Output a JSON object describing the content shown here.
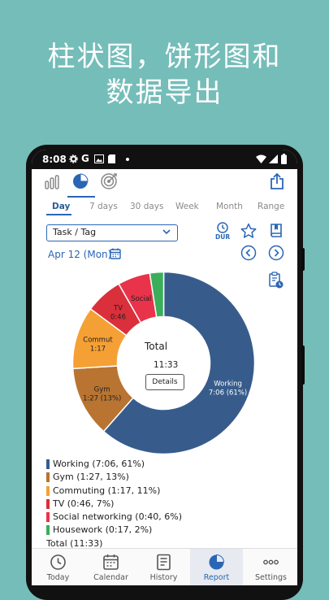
{
  "headline": {
    "line1": "柱状图，饼形图和",
    "line2": "数据导出"
  },
  "status": {
    "time": "8:08"
  },
  "tabs": [
    "Day",
    "7 days",
    "30 days",
    "Week",
    "Month",
    "Range"
  ],
  "selector": {
    "value": "Task / Tag"
  },
  "date": "Apr 12 (Mon)",
  "toolbar": {
    "dur_label": "DUR"
  },
  "chart_data": {
    "type": "pie",
    "style": "donut",
    "slices": [
      {
        "name": "Working",
        "label": "Working",
        "value_text": "7:06 (61%)",
        "percent": 61,
        "minutes": 426,
        "color": "#375c8c"
      },
      {
        "name": "Gym",
        "label": "Gym",
        "value_text": "1:27 (13%)",
        "percent": 13,
        "minutes": 87,
        "color": "#b87430"
      },
      {
        "name": "Commuting",
        "label": "Commut",
        "value_text": "1:17",
        "percent": 11,
        "minutes": 77,
        "color": "#f5a035"
      },
      {
        "name": "TV",
        "label": "TV",
        "value_text": "0:46",
        "percent": 7,
        "minutes": 46,
        "color": "#d9303b"
      },
      {
        "name": "Social networking",
        "label": "Social",
        "value_text": "",
        "percent": 6,
        "minutes": 40,
        "color": "#e8334a"
      },
      {
        "name": "Housework",
        "label": "",
        "value_text": "",
        "percent": 2,
        "minutes": 17,
        "color": "#3bae5a"
      }
    ],
    "center_title": "Total",
    "center_value": "11:33",
    "details_label": "Details"
  },
  "legend": [
    {
      "text": "Working (7:06, 61%)",
      "color": "#375c8c"
    },
    {
      "text": "Gym (1:27, 13%)",
      "color": "#b87430"
    },
    {
      "text": "Commuting (1:17, 11%)",
      "color": "#f5a035"
    },
    {
      "text": "TV (0:46, 7%)",
      "color": "#d9303b"
    },
    {
      "text": "Social networking (0:40, 6%)",
      "color": "#e8334a"
    },
    {
      "text": "Housework (0:17, 2%)",
      "color": "#3bae5a"
    }
  ],
  "legend_total": "Total (11:33)",
  "nav": [
    {
      "label": "Today",
      "icon": "clock-icon"
    },
    {
      "label": "Calendar",
      "icon": "calendar-icon"
    },
    {
      "label": "History",
      "icon": "history-icon"
    },
    {
      "label": "Report",
      "icon": "pie-chart-icon",
      "active": true
    },
    {
      "label": "Settings",
      "icon": "more-icon"
    }
  ],
  "colors": {
    "accent": "#2a66b5",
    "background": "#75bdb9"
  }
}
